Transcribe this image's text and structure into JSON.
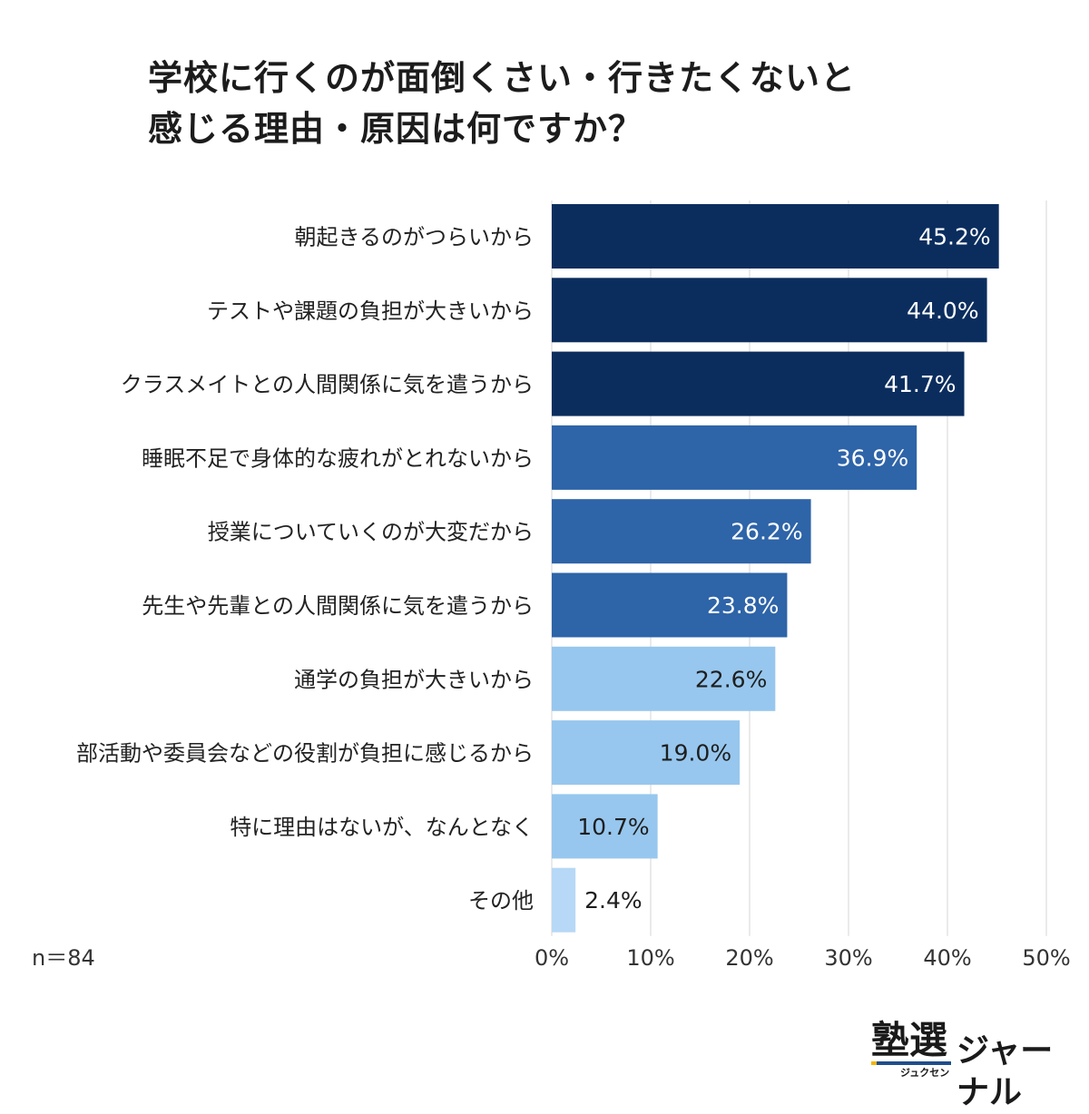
{
  "title_lines": [
    "学校に行くのが面倒くさい・行きたくないと",
    "感じる理由・原因は何ですか？"
  ],
  "sample_size": "n＝84",
  "logo": {
    "main": "塾選",
    "sub": "ジュクセン",
    "journal": "ジャーナル"
  },
  "colors": {
    "dark": "#0b2d5e",
    "mid": "#2e64a8",
    "light": "#97c7ee",
    "lightest": "#b7d8f6",
    "grid": "#e3e3e3"
  },
  "chart_data": {
    "type": "bar",
    "orientation": "horizontal",
    "title": "学校に行くのが面倒くさい・行きたくないと感じる理由・原因は何ですか？",
    "categories": [
      "朝起きるのがつらいから",
      "テストや課題の負担が大きいから",
      "クラスメイトとの人間関係に気を遣うから",
      "睡眠不足で身体的な疲れがとれないから",
      "授業についていくのが大変だから",
      "先生や先輩との人間関係に気を遣うから",
      "通学の負担が大きいから",
      "部活動や委員会などの役割が負担に感じるから",
      "特に理由はないが、なんとなく",
      "その他"
    ],
    "values": [
      45.2,
      44.0,
      41.7,
      36.9,
      26.2,
      23.8,
      22.6,
      19.0,
      10.7,
      2.4
    ],
    "value_labels": [
      "45.2%",
      "44.0%",
      "41.7%",
      "36.9%",
      "26.2%",
      "23.8%",
      "22.6%",
      "19.0%",
      "10.7%",
      "2.4%"
    ],
    "bar_color_keys": [
      "dark",
      "dark",
      "dark",
      "mid",
      "mid",
      "mid",
      "light",
      "light",
      "light",
      "lightest"
    ],
    "label_inside": [
      true,
      true,
      true,
      true,
      true,
      true,
      true,
      true,
      true,
      false
    ],
    "label_dark_text": [
      false,
      false,
      false,
      false,
      false,
      false,
      true,
      true,
      true,
      true
    ],
    "xlim": [
      0,
      50
    ],
    "xticks": [
      "0%",
      "10%",
      "20%",
      "30%",
      "40%",
      "50%"
    ],
    "grid": true
  }
}
